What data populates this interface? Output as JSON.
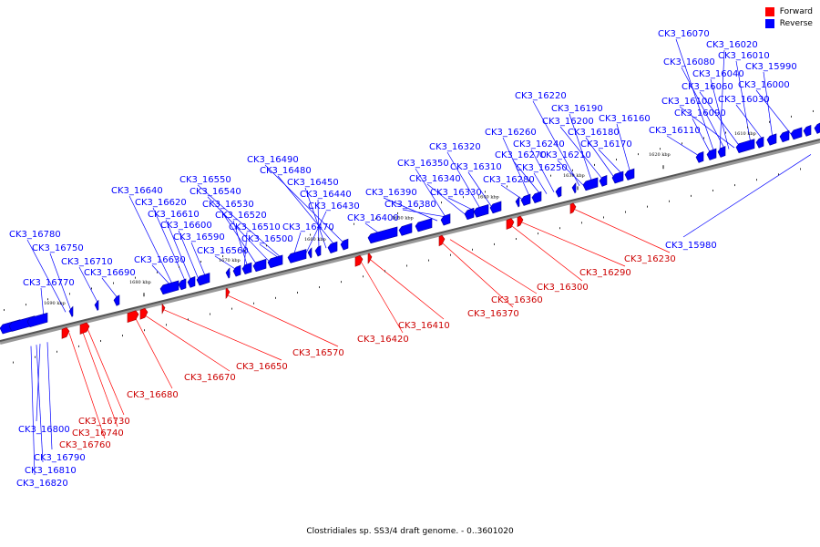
{
  "legend": {
    "forward": {
      "label": "Forward",
      "color": "#ff0000"
    },
    "reverse": {
      "label": "Reverse",
      "color": "#0000ff"
    }
  },
  "caption": "Clostridiales sp. SS3/4 draft genome. - 0..3601020",
  "kbp_ticks": [
    "1690 kbp",
    "1680 kbp",
    "1670 kbp",
    "1660 kbp",
    "1650 kbp",
    "1640 kbp",
    "1630 kbp",
    "1620 kbp",
    "1610 kbp"
  ],
  "reverse_genes": [
    "CK3_16070",
    "CK3_16020",
    "CK3_16080",
    "CK3_16010",
    "CK3_16040",
    "CK3_15990",
    "CK3_16060",
    "CK3_16000",
    "CK3_16100",
    "CK3_16030",
    "CK3_16090",
    "CK3_16110",
    "CK3_16220",
    "CK3_16190",
    "CK3_16200",
    "CK3_16160",
    "CK3_16260",
    "CK3_16180",
    "CK3_16240",
    "CK3_16170",
    "CK3_16270",
    "CK3_16210",
    "CK3_16320",
    "CK3_16350",
    "CK3_16310",
    "CK3_16250",
    "CK3_16340",
    "CK3_16280",
    "CK3_16330",
    "CK3_16390",
    "CK3_16380",
    "CK3_16400",
    "CK3_16490",
    "CK3_16480",
    "CK3_16450",
    "CK3_16550",
    "CK3_16440",
    "CK3_16540",
    "CK3_16640",
    "CK3_16430",
    "CK3_16530",
    "CK3_16620",
    "CK3_16520",
    "CK3_16610",
    "CK3_16470",
    "CK3_16510",
    "CK3_16600",
    "CK3_16500",
    "CK3_16590",
    "CK3_16560",
    "CK3_16780",
    "CK3_16630",
    "CK3_16750",
    "CK3_16710",
    "CK3_16690",
    "CK3_16770",
    "CK3_15980",
    "CK3_16800",
    "CK3_16790",
    "CK3_16810",
    "CK3_16820"
  ],
  "forward_genes": [
    "CK3_16230",
    "CK3_16290",
    "CK3_16300",
    "CK3_16360",
    "CK3_16370",
    "CK3_16410",
    "CK3_16420",
    "CK3_16570",
    "CK3_16650",
    "CK3_16670",
    "CK3_16680",
    "CK3_16730",
    "CK3_16740",
    "CK3_16760"
  ]
}
